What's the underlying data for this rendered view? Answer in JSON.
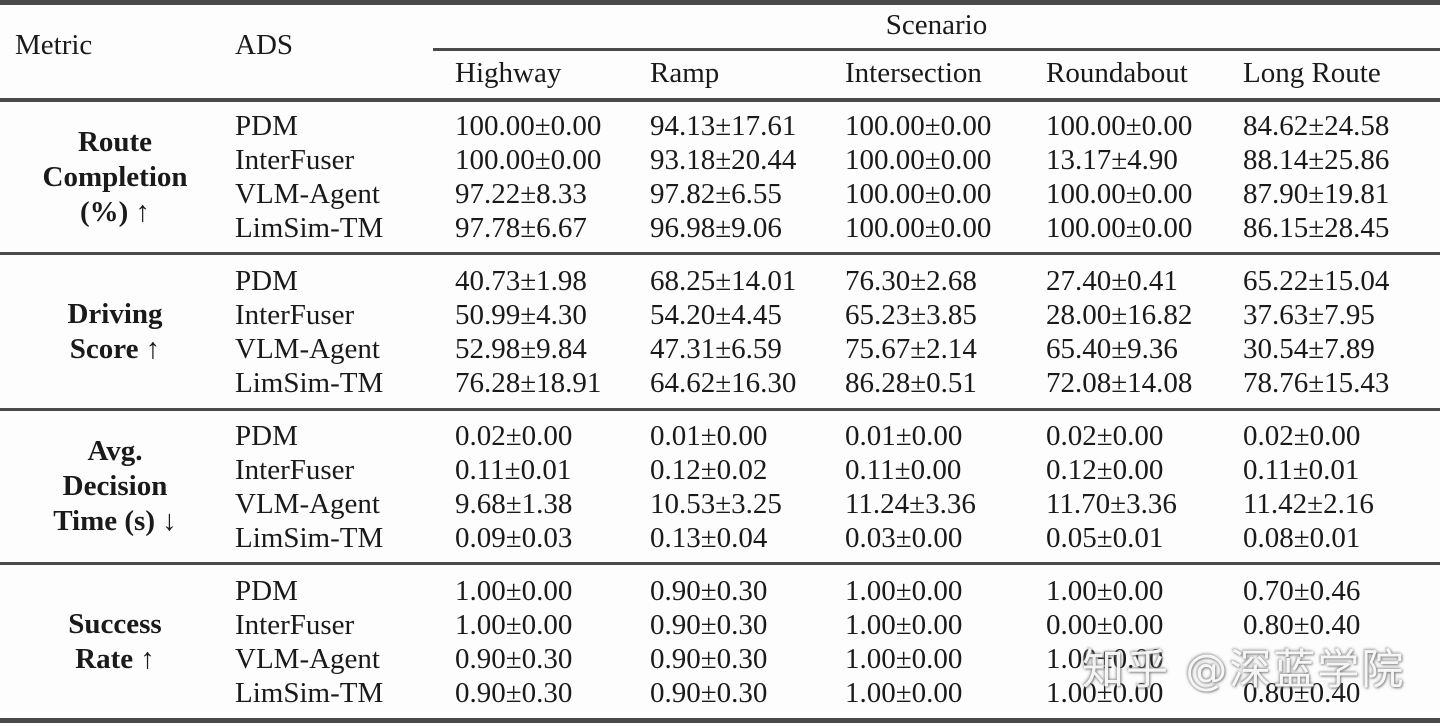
{
  "table": {
    "header": {
      "metric_label": "Metric",
      "ads_label": "ADS",
      "scenario_label": "Scenario",
      "scenario_columns": [
        "Highway",
        "Ramp",
        "Intersection",
        "Roundabout",
        "Long Route"
      ]
    },
    "groups": [
      {
        "metric_lines": [
          "Route",
          "Completion",
          "(%) ↑"
        ],
        "rows": [
          {
            "ads": "PDM",
            "values": [
              "100.00±0.00",
              "94.13±17.61",
              "100.00±0.00",
              "100.00±0.00",
              "84.62±24.58"
            ]
          },
          {
            "ads": "InterFuser",
            "values": [
              "100.00±0.00",
              "93.18±20.44",
              "100.00±0.00",
              "13.17±4.90",
              "88.14±25.86"
            ]
          },
          {
            "ads": "VLM-Agent",
            "values": [
              "97.22±8.33",
              "97.82±6.55",
              "100.00±0.00",
              "100.00±0.00",
              "87.90±19.81"
            ]
          },
          {
            "ads": "LimSim-TM",
            "values": [
              "97.78±6.67",
              "96.98±9.06",
              "100.00±0.00",
              "100.00±0.00",
              "86.15±28.45"
            ]
          }
        ]
      },
      {
        "metric_lines": [
          "Driving",
          "Score ↑"
        ],
        "rows": [
          {
            "ads": "PDM",
            "values": [
              "40.73±1.98",
              "68.25±14.01",
              "76.30±2.68",
              "27.40±0.41",
              "65.22±15.04"
            ]
          },
          {
            "ads": "InterFuser",
            "values": [
              "50.99±4.30",
              "54.20±4.45",
              "65.23±3.85",
              "28.00±16.82",
              "37.63±7.95"
            ]
          },
          {
            "ads": "VLM-Agent",
            "values": [
              "52.98±9.84",
              "47.31±6.59",
              "75.67±2.14",
              "65.40±9.36",
              "30.54±7.89"
            ]
          },
          {
            "ads": "LimSim-TM",
            "values": [
              "76.28±18.91",
              "64.62±16.30",
              "86.28±0.51",
              "72.08±14.08",
              "78.76±15.43"
            ]
          }
        ]
      },
      {
        "metric_lines": [
          "Avg.",
          "Decision",
          "Time (s) ↓"
        ],
        "rows": [
          {
            "ads": "PDM",
            "values": [
              "0.02±0.00",
              "0.01±0.00",
              "0.01±0.00",
              "0.02±0.00",
              "0.02±0.00"
            ]
          },
          {
            "ads": "InterFuser",
            "values": [
              "0.11±0.01",
              "0.12±0.02",
              "0.11±0.00",
              "0.12±0.00",
              "0.11±0.01"
            ]
          },
          {
            "ads": "VLM-Agent",
            "values": [
              "9.68±1.38",
              "10.53±3.25",
              "11.24±3.36",
              "11.70±3.36",
              "11.42±2.16"
            ]
          },
          {
            "ads": "LimSim-TM",
            "values": [
              "0.09±0.03",
              "0.13±0.04",
              "0.03±0.00",
              "0.05±0.01",
              "0.08±0.01"
            ]
          }
        ]
      },
      {
        "metric_lines": [
          "Success",
          "Rate ↑"
        ],
        "rows": [
          {
            "ads": "PDM",
            "values": [
              "1.00±0.00",
              "0.90±0.30",
              "1.00±0.00",
              "1.00±0.00",
              "0.70±0.46"
            ]
          },
          {
            "ads": "InterFuser",
            "values": [
              "1.00±0.00",
              "0.90±0.30",
              "1.00±0.00",
              "0.00±0.00",
              "0.80±0.40"
            ]
          },
          {
            "ads": "VLM-Agent",
            "values": [
              "0.90±0.30",
              "0.90±0.30",
              "1.00±0.00",
              "1.00±0.00",
              ""
            ]
          },
          {
            "ads": "LimSim-TM",
            "values": [
              "0.90±0.30",
              "0.90±0.30",
              "1.00±0.00",
              "1.00±0.00",
              "0.80±0.40"
            ]
          }
        ]
      }
    ]
  },
  "watermark": {
    "text": "知乎 @深蓝学院"
  }
}
